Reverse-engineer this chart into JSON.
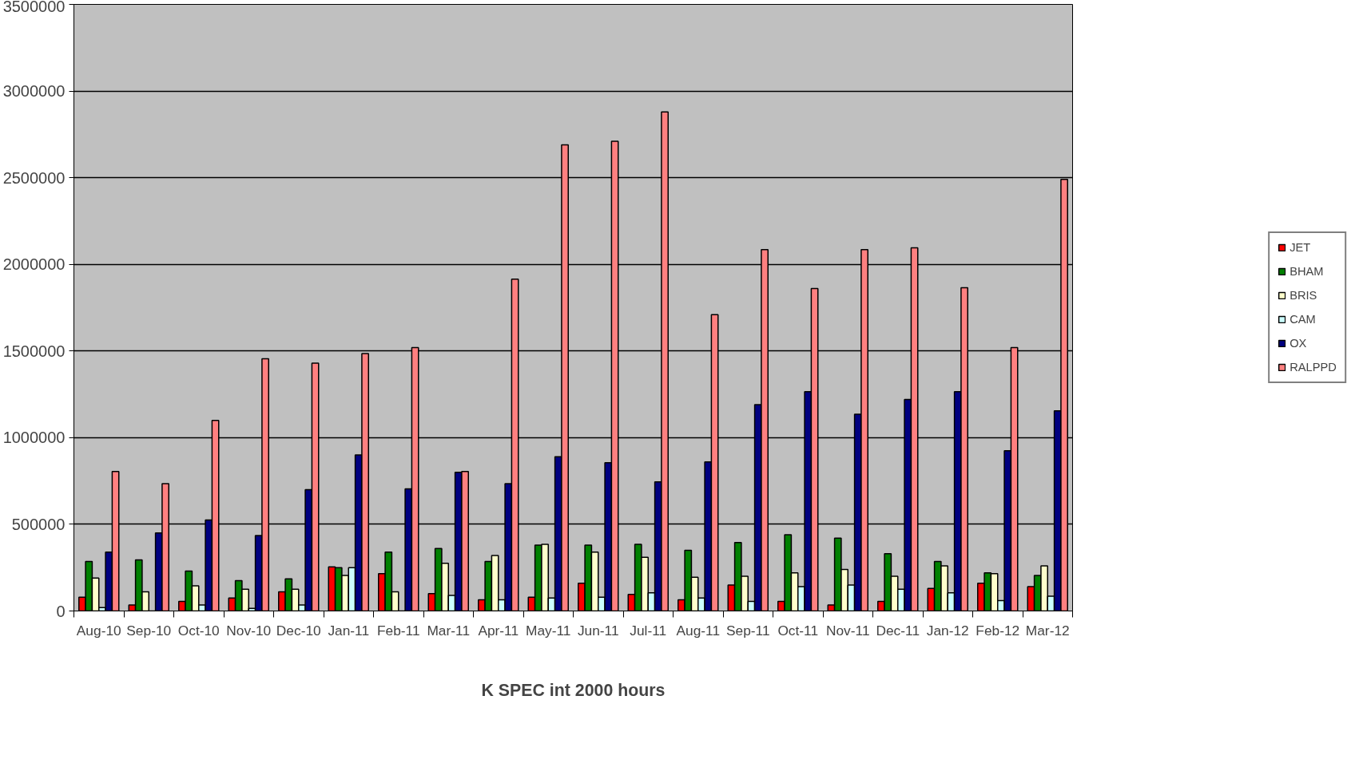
{
  "chart_data": {
    "type": "bar",
    "xlabel": "K SPEC int 2000 hours",
    "categories": [
      "Aug-10",
      "Sep-10",
      "Oct-10",
      "Nov-10",
      "Dec-10",
      "Jan-11",
      "Feb-11",
      "Mar-11",
      "Apr-11",
      "May-11",
      "Jun-11",
      "Jul-11",
      "Aug-11",
      "Sep-11",
      "Oct-11",
      "Nov-11",
      "Dec-11",
      "Jan-12",
      "Feb-12",
      "Mar-12"
    ],
    "series": [
      {
        "name": "JET",
        "color": "#ff0000",
        "values": [
          80000,
          35000,
          55000,
          75000,
          110000,
          255000,
          215000,
          100000,
          65000,
          80000,
          160000,
          95000,
          65000,
          150000,
          55000,
          35000,
          55000,
          130000,
          160000,
          140000
        ]
      },
      {
        "name": "BHAM",
        "color": "#008000",
        "values": [
          285000,
          295000,
          230000,
          175000,
          185000,
          250000,
          340000,
          360000,
          285000,
          380000,
          380000,
          385000,
          350000,
          395000,
          440000,
          420000,
          330000,
          285000,
          220000,
          205000
        ]
      },
      {
        "name": "BRIS",
        "color": "#ffffcc",
        "values": [
          190000,
          110000,
          145000,
          125000,
          125000,
          205000,
          110000,
          275000,
          320000,
          385000,
          340000,
          310000,
          195000,
          200000,
          220000,
          240000,
          200000,
          260000,
          215000,
          260000
        ]
      },
      {
        "name": "CAM",
        "color": "#ccffff",
        "values": [
          20000,
          null,
          35000,
          15000,
          35000,
          250000,
          null,
          90000,
          65000,
          75000,
          80000,
          105000,
          75000,
          55000,
          140000,
          150000,
          125000,
          105000,
          60000,
          85000
        ]
      },
      {
        "name": "OX",
        "color": "#000080",
        "values": [
          340000,
          450000,
          525000,
          435000,
          700000,
          900000,
          705000,
          800000,
          735000,
          890000,
          855000,
          745000,
          860000,
          1190000,
          1265000,
          1135000,
          1220000,
          1265000,
          925000,
          1155000
        ]
      },
      {
        "name": "RALPPD",
        "color": "#ff8080",
        "values": [
          805000,
          735000,
          1100000,
          1455000,
          1430000,
          1485000,
          1520000,
          805000,
          1915000,
          2690000,
          2710000,
          2880000,
          1710000,
          2085000,
          1860000,
          2085000,
          2095000,
          1865000,
          1520000,
          2490000
        ]
      }
    ],
    "ylim": [
      0,
      3500000
    ],
    "yticks": [
      0,
      500000,
      1000000,
      1500000,
      2000000,
      2500000,
      3000000,
      3500000
    ],
    "grid": "y",
    "legend": "right"
  }
}
